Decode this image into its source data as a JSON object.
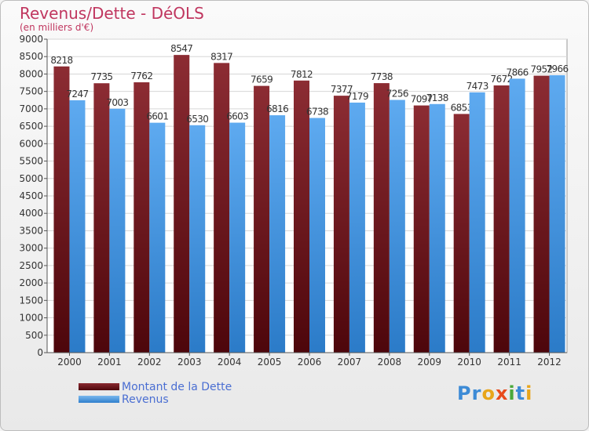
{
  "header": {
    "title": "Revenus/Dette - DéOLS",
    "subtitle": "(en milliers d'€)"
  },
  "legend": {
    "items": [
      {
        "label": "Montant de la Dette",
        "color": "#6b0f16"
      },
      {
        "label": "Revenus",
        "color": "#3f8fdb"
      }
    ]
  },
  "logo": {
    "letters": [
      "P",
      "r",
      "o",
      "x",
      "i",
      "t",
      "i"
    ],
    "colors": [
      "#3d8bd6",
      "#3d8bd6",
      "#e8a51a",
      "#e84a1b",
      "#4aa83a",
      "#3d8bd6",
      "#e8a51a"
    ]
  },
  "chart_data": {
    "type": "bar",
    "categories": [
      "2000",
      "2001",
      "2002",
      "2003",
      "2004",
      "2005",
      "2006",
      "2007",
      "2008",
      "2009",
      "2010",
      "2011",
      "2012"
    ],
    "series": [
      {
        "name": "Montant de la Dette",
        "values": [
          8218,
          7735,
          7762,
          8547,
          8317,
          7659,
          7812,
          7377,
          7738,
          7097,
          6853,
          7672,
          7952
        ],
        "color": "#6b0f16"
      },
      {
        "name": "Revenus",
        "values": [
          7247,
          7003,
          6601,
          6530,
          6603,
          6816,
          6738,
          7179,
          7256,
          7138,
          7473,
          7866,
          7966
        ],
        "color": "#3f8fdb"
      }
    ],
    "yticks": [
      0,
      500,
      1000,
      1500,
      2000,
      2500,
      3000,
      3500,
      4000,
      4500,
      5000,
      5500,
      6000,
      6500,
      7000,
      7500,
      8000,
      8500,
      9000
    ],
    "ylim": [
      0,
      9000
    ],
    "grid": true
  }
}
